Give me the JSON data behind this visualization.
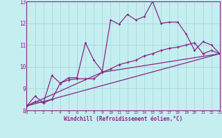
{
  "xlabel": "Windchill (Refroidissement éolien,°C)",
  "ylabel": "",
  "background_color": "#c5eef0",
  "line_color": "#882288",
  "grid_color": "#a8d8dc",
  "x_min": 0,
  "x_max": 23,
  "y_min": 8,
  "y_max": 13,
  "line1_x": [
    0,
    1,
    2,
    3,
    4,
    5,
    6,
    7,
    8,
    9,
    10,
    11,
    12,
    13,
    14,
    15,
    16,
    17,
    18,
    19,
    20,
    21,
    22,
    23
  ],
  "line1_y": [
    8.2,
    8.65,
    8.35,
    9.6,
    9.25,
    9.5,
    9.5,
    11.1,
    10.3,
    9.8,
    12.15,
    11.95,
    12.4,
    12.15,
    12.3,
    13.0,
    12.0,
    12.05,
    12.05,
    11.5,
    10.75,
    11.15,
    11.0,
    10.6
  ],
  "line2_x": [
    0,
    1,
    2,
    3,
    4,
    5,
    6,
    7,
    8,
    9,
    10,
    11,
    12,
    13,
    14,
    15,
    16,
    17,
    18,
    19,
    20,
    21,
    22,
    23
  ],
  "line2_y": [
    8.2,
    8.4,
    8.35,
    8.5,
    9.25,
    9.4,
    9.45,
    9.45,
    9.45,
    9.75,
    9.9,
    10.1,
    10.2,
    10.3,
    10.5,
    10.6,
    10.75,
    10.85,
    10.9,
    11.0,
    11.1,
    10.6,
    10.75,
    10.6
  ],
  "line3_x": [
    0,
    23
  ],
  "line3_y": [
    8.2,
    10.6
  ],
  "line4_x": [
    0,
    9,
    23
  ],
  "line4_y": [
    8.2,
    9.75,
    10.6
  ]
}
